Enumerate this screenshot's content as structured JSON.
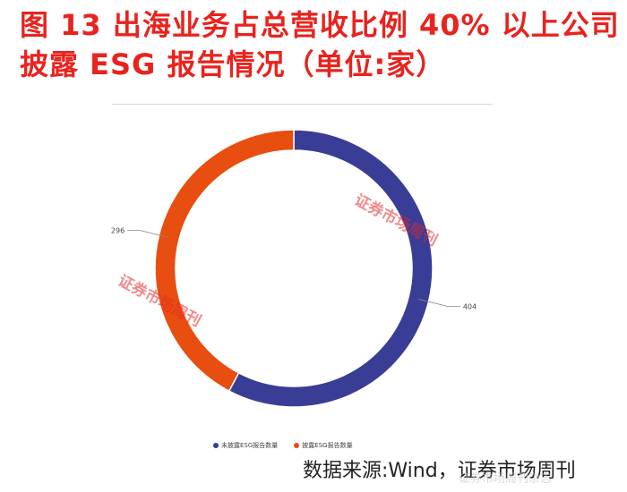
{
  "title": "图 13  出海业务占总营收比例 40% 以上公司披露 ESG 报告情况（单位:家）",
  "source": "数据来源:Wind，证券市场周刊",
  "watermarks": {
    "stamp_1": "证券市场周刊",
    "stamp_2": "证券市场周刊",
    "corner": "证券市场周刊杂志"
  },
  "colors": {
    "series_not_disclosed": "#3a3d96",
    "series_disclosed": "#e84e0f",
    "title": "#e8231e"
  },
  "chart_data": {
    "type": "pie",
    "donut": true,
    "title": "",
    "legend_position": "bottom",
    "series": [
      {
        "name": "未披露ESG报告数量",
        "value": 404
      },
      {
        "name": "披露ESG报告数量",
        "value": 296
      }
    ]
  }
}
